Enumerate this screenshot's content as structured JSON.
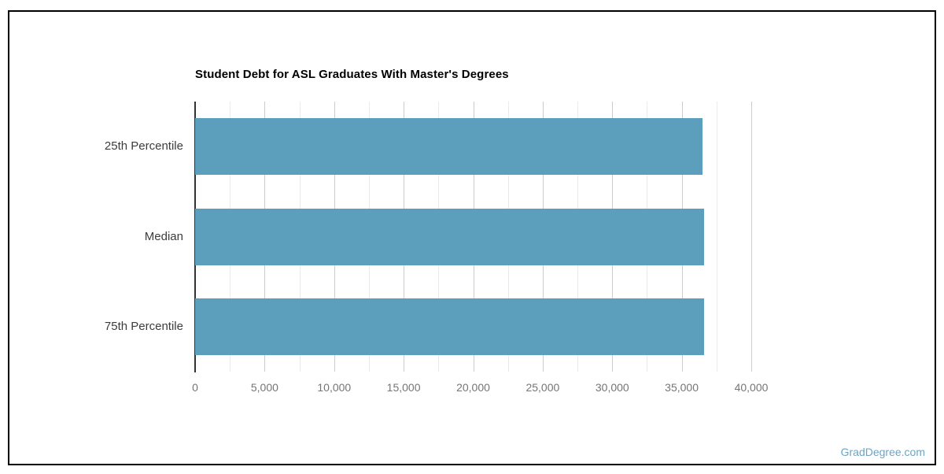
{
  "page": {
    "watermark": "GradDegree.com"
  },
  "chart_data": {
    "type": "bar",
    "orientation": "horizontal",
    "title": "Student Debt for ASL Graduates With Master's Degrees",
    "categories": [
      "25th Percentile",
      "Median",
      "75th Percentile"
    ],
    "values": [
      36500,
      36575,
      36630
    ],
    "xlabel": "",
    "ylabel": "",
    "xlim": [
      0,
      40000
    ],
    "x_major_step": 5000,
    "x_minor_step": 2500,
    "x_tick_labels": [
      "0",
      "5,000",
      "10,000",
      "15,000",
      "20,000",
      "25,000",
      "30,000",
      "35,000",
      "40,000"
    ],
    "grid": true,
    "legend": "none",
    "colors": {
      "bar": "#5C9FBD",
      "axis_line": "#3a3a3a",
      "major_grid": "#cccccc",
      "minor_grid": "#ebebeb",
      "tick_label": "#757575",
      "category_label": "#3c3c3c",
      "title": "#000000",
      "watermark": "#6da3c3",
      "border": "#000000"
    }
  }
}
